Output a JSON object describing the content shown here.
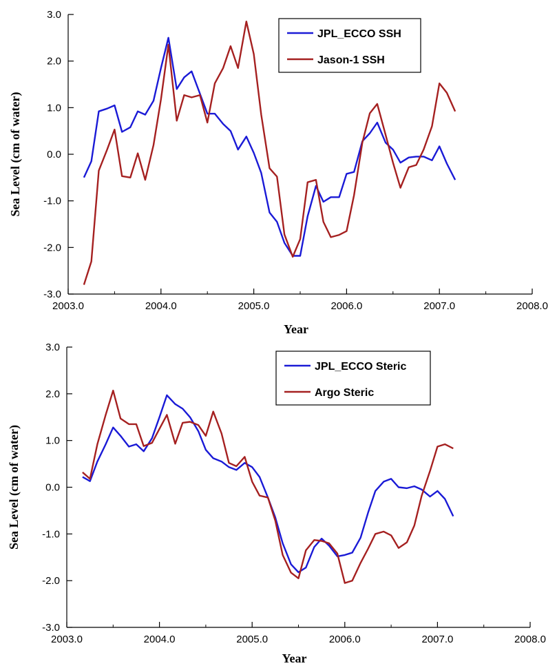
{
  "chart_data": [
    {
      "type": "line",
      "xlabel": "Year",
      "ylabel": "Sea Level (cm of water)",
      "xlim": [
        2003.0,
        2008.0
      ],
      "ylim": [
        -3.0,
        3.0
      ],
      "xticks": [
        "2003.0",
        "2004.0",
        "2005.0",
        "2006.0",
        "2007.0",
        "2008.0"
      ],
      "yticks": [
        "-3.0",
        "-2.0",
        "-1.0",
        "0.0",
        "1.0",
        "2.0",
        "3.0"
      ],
      "legend_position": "top-right",
      "series": [
        {
          "name": "JPL_ECCO SSH",
          "color": "#1a1ad6",
          "points": [
            [
              2003.17,
              -0.5
            ],
            [
              2003.25,
              -0.15
            ],
            [
              2003.33,
              0.92
            ],
            [
              2003.42,
              0.98
            ],
            [
              2003.5,
              1.05
            ],
            [
              2003.58,
              0.48
            ],
            [
              2003.67,
              0.58
            ],
            [
              2003.75,
              0.92
            ],
            [
              2003.83,
              0.85
            ],
            [
              2003.92,
              1.15
            ],
            [
              2004.0,
              1.85
            ],
            [
              2004.08,
              2.5
            ],
            [
              2004.17,
              1.4
            ],
            [
              2004.25,
              1.65
            ],
            [
              2004.33,
              1.78
            ],
            [
              2004.42,
              1.3
            ],
            [
              2004.5,
              0.87
            ],
            [
              2004.58,
              0.87
            ],
            [
              2004.67,
              0.65
            ],
            [
              2004.75,
              0.5
            ],
            [
              2004.83,
              0.1
            ],
            [
              2004.92,
              0.38
            ],
            [
              2005.0,
              0.03
            ],
            [
              2005.08,
              -0.4
            ],
            [
              2005.17,
              -1.25
            ],
            [
              2005.25,
              -1.45
            ],
            [
              2005.33,
              -1.9
            ],
            [
              2005.42,
              -2.18
            ],
            [
              2005.5,
              -2.18
            ],
            [
              2005.58,
              -1.33
            ],
            [
              2005.67,
              -0.68
            ],
            [
              2005.75,
              -1.02
            ],
            [
              2005.83,
              -0.92
            ],
            [
              2005.92,
              -0.92
            ],
            [
              2006.0,
              -0.42
            ],
            [
              2006.08,
              -0.38
            ],
            [
              2006.17,
              0.28
            ],
            [
              2006.25,
              0.45
            ],
            [
              2006.33,
              0.68
            ],
            [
              2006.42,
              0.25
            ],
            [
              2006.5,
              0.1
            ],
            [
              2006.58,
              -0.18
            ],
            [
              2006.67,
              -0.07
            ],
            [
              2006.75,
              -0.05
            ],
            [
              2006.83,
              -0.05
            ],
            [
              2006.92,
              -0.13
            ],
            [
              2007.0,
              0.17
            ],
            [
              2007.08,
              -0.2
            ],
            [
              2007.17,
              -0.55
            ]
          ]
        },
        {
          "name": "Jason-1 SSH",
          "color": "#a52020",
          "points": [
            [
              2003.17,
              -2.8
            ],
            [
              2003.25,
              -2.3
            ],
            [
              2003.33,
              -0.35
            ],
            [
              2003.42,
              0.1
            ],
            [
              2003.5,
              0.53
            ],
            [
              2003.58,
              -0.47
            ],
            [
              2003.67,
              -0.5
            ],
            [
              2003.75,
              0.02
            ],
            [
              2003.83,
              -0.55
            ],
            [
              2003.92,
              0.2
            ],
            [
              2004.0,
              1.18
            ],
            [
              2004.08,
              2.35
            ],
            [
              2004.17,
              0.72
            ],
            [
              2004.25,
              1.27
            ],
            [
              2004.33,
              1.22
            ],
            [
              2004.42,
              1.27
            ],
            [
              2004.5,
              0.68
            ],
            [
              2004.58,
              1.52
            ],
            [
              2004.67,
              1.85
            ],
            [
              2004.75,
              2.32
            ],
            [
              2004.83,
              1.85
            ],
            [
              2004.92,
              2.85
            ],
            [
              2005.0,
              2.15
            ],
            [
              2005.08,
              0.85
            ],
            [
              2005.17,
              -0.3
            ],
            [
              2005.25,
              -0.48
            ],
            [
              2005.33,
              -1.72
            ],
            [
              2005.42,
              -2.2
            ],
            [
              2005.5,
              -1.82
            ],
            [
              2005.58,
              -0.6
            ],
            [
              2005.67,
              -0.55
            ],
            [
              2005.75,
              -1.45
            ],
            [
              2005.83,
              -1.78
            ],
            [
              2005.92,
              -1.73
            ],
            [
              2006.0,
              -1.65
            ],
            [
              2006.08,
              -0.88
            ],
            [
              2006.17,
              0.25
            ],
            [
              2006.25,
              0.88
            ],
            [
              2006.33,
              1.08
            ],
            [
              2006.42,
              0.42
            ],
            [
              2006.5,
              -0.18
            ],
            [
              2006.58,
              -0.72
            ],
            [
              2006.67,
              -0.28
            ],
            [
              2006.75,
              -0.23
            ],
            [
              2006.83,
              0.1
            ],
            [
              2006.92,
              0.6
            ],
            [
              2007.0,
              1.52
            ],
            [
              2007.08,
              1.32
            ],
            [
              2007.17,
              0.92
            ]
          ]
        }
      ]
    },
    {
      "type": "line",
      "xlabel": "Year",
      "ylabel": "Sea Level (cm of water)",
      "xlim": [
        2003.0,
        2008.0
      ],
      "ylim": [
        -3.0,
        3.0
      ],
      "xticks": [
        "2003.0",
        "2004.0",
        "2005.0",
        "2006.0",
        "2007.0",
        "2008.0"
      ],
      "yticks": [
        "-3.0",
        "-2.0",
        "-1.0",
        "0.0",
        "1.0",
        "2.0",
        "3.0"
      ],
      "legend_position": "top-right",
      "series": [
        {
          "name": "JPL_ECCO Steric",
          "color": "#1a1ad6",
          "points": [
            [
              2003.17,
              0.22
            ],
            [
              2003.25,
              0.13
            ],
            [
              2003.33,
              0.55
            ],
            [
              2003.42,
              0.92
            ],
            [
              2003.5,
              1.28
            ],
            [
              2003.58,
              1.1
            ],
            [
              2003.67,
              0.87
            ],
            [
              2003.75,
              0.92
            ],
            [
              2003.83,
              0.77
            ],
            [
              2003.92,
              1.05
            ],
            [
              2004.0,
              1.5
            ],
            [
              2004.08,
              1.97
            ],
            [
              2004.17,
              1.78
            ],
            [
              2004.25,
              1.68
            ],
            [
              2004.33,
              1.5
            ],
            [
              2004.42,
              1.2
            ],
            [
              2004.5,
              0.8
            ],
            [
              2004.58,
              0.62
            ],
            [
              2004.67,
              0.55
            ],
            [
              2004.75,
              0.43
            ],
            [
              2004.83,
              0.37
            ],
            [
              2004.92,
              0.52
            ],
            [
              2005.0,
              0.43
            ],
            [
              2005.08,
              0.22
            ],
            [
              2005.17,
              -0.22
            ],
            [
              2005.25,
              -0.65
            ],
            [
              2005.33,
              -1.2
            ],
            [
              2005.42,
              -1.65
            ],
            [
              2005.5,
              -1.82
            ],
            [
              2005.58,
              -1.72
            ],
            [
              2005.67,
              -1.28
            ],
            [
              2005.75,
              -1.1
            ],
            [
              2005.83,
              -1.25
            ],
            [
              2005.92,
              -1.48
            ],
            [
              2006.0,
              -1.45
            ],
            [
              2006.08,
              -1.4
            ],
            [
              2006.17,
              -1.08
            ],
            [
              2006.25,
              -0.55
            ],
            [
              2006.33,
              -0.08
            ],
            [
              2006.42,
              0.12
            ],
            [
              2006.5,
              0.18
            ],
            [
              2006.58,
              0.0
            ],
            [
              2006.67,
              -0.02
            ],
            [
              2006.75,
              0.02
            ],
            [
              2006.83,
              -0.05
            ],
            [
              2006.92,
              -0.2
            ],
            [
              2007.0,
              -0.08
            ],
            [
              2007.08,
              -0.25
            ],
            [
              2007.17,
              -0.62
            ]
          ]
        },
        {
          "name": "Argo Steric",
          "color": "#a52020",
          "points": [
            [
              2003.17,
              0.32
            ],
            [
              2003.25,
              0.18
            ],
            [
              2003.33,
              0.92
            ],
            [
              2003.42,
              1.55
            ],
            [
              2003.5,
              2.07
            ],
            [
              2003.58,
              1.47
            ],
            [
              2003.67,
              1.35
            ],
            [
              2003.75,
              1.35
            ],
            [
              2003.83,
              0.88
            ],
            [
              2003.92,
              0.95
            ],
            [
              2004.0,
              1.25
            ],
            [
              2004.08,
              1.55
            ],
            [
              2004.17,
              0.93
            ],
            [
              2004.25,
              1.38
            ],
            [
              2004.33,
              1.4
            ],
            [
              2004.42,
              1.33
            ],
            [
              2004.5,
              1.1
            ],
            [
              2004.58,
              1.62
            ],
            [
              2004.67,
              1.15
            ],
            [
              2004.75,
              0.52
            ],
            [
              2004.83,
              0.45
            ],
            [
              2004.92,
              0.65
            ],
            [
              2005.0,
              0.12
            ],
            [
              2005.08,
              -0.18
            ],
            [
              2005.17,
              -0.22
            ],
            [
              2005.25,
              -0.72
            ],
            [
              2005.33,
              -1.45
            ],
            [
              2005.42,
              -1.83
            ],
            [
              2005.5,
              -1.95
            ],
            [
              2005.58,
              -1.35
            ],
            [
              2005.67,
              -1.13
            ],
            [
              2005.75,
              -1.15
            ],
            [
              2005.83,
              -1.2
            ],
            [
              2005.92,
              -1.42
            ],
            [
              2006.0,
              -2.05
            ],
            [
              2006.08,
              -2.0
            ],
            [
              2006.17,
              -1.62
            ],
            [
              2006.25,
              -1.32
            ],
            [
              2006.33,
              -1.0
            ],
            [
              2006.42,
              -0.95
            ],
            [
              2006.5,
              -1.03
            ],
            [
              2006.58,
              -1.3
            ],
            [
              2006.67,
              -1.18
            ],
            [
              2006.75,
              -0.82
            ],
            [
              2006.83,
              -0.18
            ],
            [
              2006.92,
              0.35
            ],
            [
              2007.0,
              0.87
            ],
            [
              2007.08,
              0.92
            ],
            [
              2007.17,
              0.83
            ]
          ]
        }
      ]
    }
  ]
}
